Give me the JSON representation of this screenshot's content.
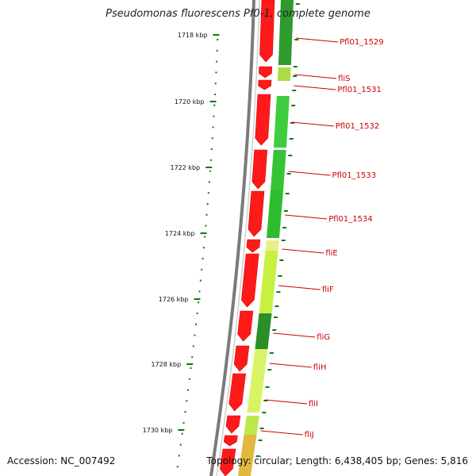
{
  "title": "Pseudomonas fluorescens Pf0-1, complete genome",
  "footer": {
    "accession": "Accession: NC_007492",
    "summary": "Topology: circular; Length: 6,438,405 bp; Genes: 5,816"
  },
  "colors": {
    "forward_cds": "#ff1a1a",
    "tick": "#0a7a0a",
    "label": "#cc0000",
    "backbone": "#808080"
  },
  "ticks": [
    "1718 kbp",
    "1720 kbp",
    "1722 kbp",
    "1724 kbp",
    "1726 kbp",
    "1728 kbp",
    "1730 kbp"
  ],
  "genes": [
    "Pfl01_1529",
    "fliS",
    "Pfl01_1531",
    "Pfl01_1532",
    "Pfl01_1533",
    "Pfl01_1534",
    "fliE",
    "fliF",
    "fliG",
    "fliH",
    "fliI",
    "fliJ"
  ]
}
